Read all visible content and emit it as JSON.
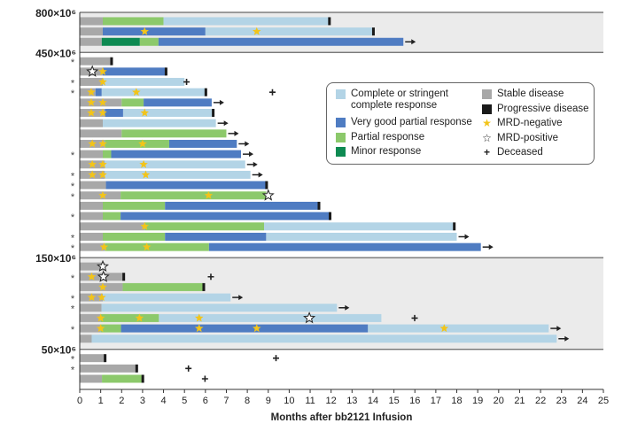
{
  "chart_data": {
    "type": "swimmer",
    "xlabel": "Months after bb2121 Infusion",
    "xlim": [
      0,
      25
    ],
    "xticks": [
      0,
      1,
      2,
      3,
      4,
      5,
      6,
      7,
      8,
      9,
      10,
      11,
      12,
      13,
      14,
      15,
      16,
      17,
      18,
      19,
      20,
      21,
      22,
      23,
      24,
      25
    ],
    "colors": {
      "CR": "#b3d4e6",
      "VGPR": "#4f7cc2",
      "PR": "#8cc96b",
      "MR": "#0e8a52",
      "SD": "#a8a8a8",
      "PD": "#1a1a1a",
      "mrd_neg": "#f2c41a",
      "group_bg": "#ebebeb"
    },
    "legend": {
      "CR": "Complete or stringent complete response",
      "VGPR": "Very good partial response",
      "PR": "Partial response",
      "MR": "Minor response",
      "SD": "Stable disease",
      "PD": "Progressive disease",
      "mrd_neg": "MRD-negative",
      "mrd_pos": "MRD-positive",
      "deceased": "Deceased"
    },
    "asterisk": "*",
    "groups": [
      {
        "label": "800×10⁶",
        "shaded": true,
        "rows": [
          {
            "ast": false,
            "seg": [
              [
                "SD",
                0,
                1.1
              ],
              [
                "PR",
                1.1,
                4.0
              ],
              [
                "CR",
                4.0,
                11.9
              ]
            ],
            "end": "PD",
            "stars": [],
            "dec": null
          },
          {
            "ast": false,
            "seg": [
              [
                "SD",
                0,
                1.1
              ],
              [
                "VGPR",
                1.1,
                6.0
              ],
              [
                "CR",
                6.0,
                14.0
              ]
            ],
            "end": "PD",
            "stars": [
              [
                3.1,
                "neg"
              ],
              [
                8.45,
                "neg"
              ]
            ],
            "dec": null
          },
          {
            "ast": false,
            "seg": [
              [
                "SD",
                0,
                1.05
              ],
              [
                "MR",
                1.05,
                2.87
              ],
              [
                "PR",
                2.87,
                3.76
              ],
              [
                "VGPR",
                3.76,
                15.45
              ]
            ],
            "end": "ongoing",
            "stars": [],
            "dec": null
          }
        ]
      },
      {
        "label": "450×10⁶",
        "shaded": false,
        "rows": [
          {
            "ast": true,
            "seg": [
              [
                "SD",
                0,
                1.5
              ]
            ],
            "end": "PD",
            "stars": [],
            "dec": null
          },
          {
            "ast": false,
            "seg": [
              [
                "SD",
                0,
                1.1
              ],
              [
                "VGPR",
                1.1,
                4.1
              ]
            ],
            "end": "PD",
            "stars": [
              [
                0.6,
                "pos"
              ],
              [
                1.1,
                "neg"
              ]
            ],
            "dec": null
          },
          {
            "ast": true,
            "seg": [
              [
                "SD",
                0,
                1.1
              ],
              [
                "CR",
                1.1,
                5.0
              ]
            ],
            "end": null,
            "stars": [
              [
                1.1,
                "neg"
              ]
            ],
            "dec": 5.1
          },
          {
            "ast": true,
            "seg": [
              [
                "SD",
                0,
                0.75
              ],
              [
                "VGPR",
                0.75,
                1.05
              ],
              [
                "CR",
                1.05,
                6.0
              ]
            ],
            "end": "PD",
            "stars": [
              [
                0.55,
                "neg"
              ],
              [
                2.7,
                "neg"
              ]
            ],
            "dec": 9.2
          },
          {
            "ast": false,
            "seg": [
              [
                "SD",
                0,
                2.0
              ],
              [
                "PR",
                2.0,
                3.05
              ],
              [
                "VGPR",
                3.05,
                6.3
              ]
            ],
            "end": "ongoing",
            "stars": [
              [
                0.55,
                "neg"
              ],
              [
                1.1,
                "neg"
              ]
            ],
            "dec": null
          },
          {
            "ast": false,
            "seg": [
              [
                "SD",
                0,
                1.2
              ],
              [
                "VGPR",
                1.2,
                2.07
              ],
              [
                "CR",
                2.07,
                6.35
              ]
            ],
            "end": "PD",
            "stars": [
              [
                0.55,
                "neg"
              ],
              [
                1.1,
                "neg"
              ],
              [
                3.1,
                "neg"
              ]
            ],
            "dec": null
          },
          {
            "ast": false,
            "seg": [
              [
                "SD",
                0,
                1.1
              ],
              [
                "CR",
                1.1,
                6.5
              ]
            ],
            "end": "ongoing",
            "stars": [],
            "dec": null
          },
          {
            "ast": false,
            "seg": [
              [
                "SD",
                0,
                2.0
              ],
              [
                "PR",
                2.0,
                7.0
              ]
            ],
            "end": "ongoing",
            "stars": [],
            "dec": null
          },
          {
            "ast": false,
            "seg": [
              [
                "SD",
                0,
                1.2
              ],
              [
                "PR",
                1.2,
                4.27
              ],
              [
                "VGPR",
                4.27,
                7.5
              ]
            ],
            "end": "ongoing",
            "stars": [
              [
                0.6,
                "neg"
              ],
              [
                1.1,
                "neg"
              ],
              [
                3.0,
                "neg"
              ]
            ],
            "dec": null
          },
          {
            "ast": true,
            "seg": [
              [
                "SD",
                0,
                1.1
              ],
              [
                "PR",
                1.1,
                1.5
              ],
              [
                "VGPR",
                1.5,
                7.7
              ]
            ],
            "end": "ongoing",
            "stars": [],
            "dec": null
          },
          {
            "ast": false,
            "seg": [
              [
                "SD",
                0,
                1.2
              ],
              [
                "CR",
                1.2,
                7.9
              ]
            ],
            "end": "ongoing",
            "stars": [
              [
                0.6,
                "neg"
              ],
              [
                1.1,
                "neg"
              ],
              [
                3.05,
                "neg"
              ]
            ],
            "dec": null
          },
          {
            "ast": true,
            "seg": [
              [
                "SD",
                0,
                1.2
              ],
              [
                "CR",
                1.2,
                8.15
              ]
            ],
            "end": "ongoing",
            "stars": [
              [
                0.6,
                "neg"
              ],
              [
                1.1,
                "neg"
              ],
              [
                3.15,
                "neg"
              ]
            ],
            "dec": null
          },
          {
            "ast": true,
            "seg": [
              [
                "SD",
                0,
                1.25
              ],
              [
                "VGPR",
                1.25,
                8.9
              ]
            ],
            "end": "PD",
            "stars": [],
            "dec": null
          },
          {
            "ast": true,
            "seg": [
              [
                "SD",
                0,
                1.95
              ],
              [
                "PR",
                1.95,
                8.9
              ]
            ],
            "end": null,
            "stars": [
              [
                1.1,
                "neg"
              ],
              [
                6.15,
                "neg"
              ],
              [
                9.0,
                "pos"
              ]
            ],
            "dec": null
          },
          {
            "ast": false,
            "seg": [
              [
                "SD",
                0,
                1.1
              ],
              [
                "PR",
                1.1,
                4.07
              ],
              [
                "VGPR",
                4.07,
                11.4
              ]
            ],
            "end": "PD",
            "stars": [],
            "dec": null
          },
          {
            "ast": true,
            "seg": [
              [
                "SD",
                0,
                1.1
              ],
              [
                "PR",
                1.1,
                1.95
              ],
              [
                "VGPR",
                1.95,
                11.93
              ]
            ],
            "end": "PD",
            "stars": [],
            "dec": null
          },
          {
            "ast": false,
            "seg": [
              [
                "SD",
                0,
                3.1
              ],
              [
                "PR",
                3.1,
                8.8
              ],
              [
                "CR",
                8.8,
                17.86
              ]
            ],
            "end": "PD",
            "stars": [
              [
                3.1,
                "neg"
              ]
            ],
            "dec": null
          },
          {
            "ast": true,
            "seg": [
              [
                "SD",
                0,
                1.1
              ],
              [
                "PR",
                1.1,
                4.07
              ],
              [
                "VGPR",
                4.07,
                8.9
              ],
              [
                "CR",
                8.9,
                18.0
              ]
            ],
            "end": "ongoing",
            "stars": [],
            "dec": null
          },
          {
            "ast": true,
            "seg": [
              [
                "SD",
                0,
                1.2
              ],
              [
                "PR",
                1.2,
                6.17
              ],
              [
                "VGPR",
                6.17,
                19.15
              ]
            ],
            "end": "ongoing",
            "stars": [
              [
                1.16,
                "neg"
              ],
              [
                3.2,
                "neg"
              ]
            ],
            "dec": null
          }
        ]
      },
      {
        "label": "150×10⁶",
        "shaded": true,
        "rows": [
          {
            "ast": false,
            "seg": [
              [
                "SD",
                0,
                1.2
              ]
            ],
            "end": null,
            "stars": [
              [
                1.1,
                "pos"
              ]
            ],
            "dec": null
          },
          {
            "ast": true,
            "seg": [
              [
                "SD",
                0,
                2.08
              ]
            ],
            "end": "PD",
            "stars": [
              [
                0.57,
                "neg"
              ],
              [
                1.13,
                "pos"
              ]
            ],
            "dec": 6.26
          },
          {
            "ast": false,
            "seg": [
              [
                "SD",
                0,
                2.05
              ],
              [
                "PR",
                2.05,
                5.9
              ]
            ],
            "end": "PD",
            "stars": [
              [
                1.1,
                "neg"
              ]
            ],
            "dec": null
          },
          {
            "ast": true,
            "seg": [
              [
                "SD",
                0,
                1.1
              ],
              [
                "CR",
                1.1,
                7.2
              ]
            ],
            "end": "ongoing",
            "stars": [
              [
                0.57,
                "neg"
              ],
              [
                1.05,
                "neg"
              ]
            ],
            "dec": null
          },
          {
            "ast": true,
            "seg": [
              [
                "SD",
                0,
                1.04
              ],
              [
                "CR",
                1.04,
                12.28
              ]
            ],
            "end": "ongoing",
            "stars": [],
            "dec": null
          },
          {
            "ast": false,
            "seg": [
              [
                "SD",
                0,
                1.0
              ],
              [
                "PR",
                1.0,
                3.78
              ],
              [
                "CR",
                3.78,
                14.4
              ]
            ],
            "end": null,
            "stars": [
              [
                1.0,
                "neg"
              ],
              [
                2.85,
                "neg"
              ],
              [
                5.7,
                "neg"
              ],
              [
                10.96,
                "pos"
              ]
            ],
            "dec": 15.99
          },
          {
            "ast": true,
            "seg": [
              [
                "SD",
                0,
                1.0
              ],
              [
                "PR",
                1.0,
                1.97
              ],
              [
                "VGPR",
                1.97,
                13.76
              ],
              [
                "CR",
                13.76,
                22.39
              ]
            ],
            "end": "ongoing",
            "stars": [
              [
                1.0,
                "neg"
              ],
              [
                5.7,
                "neg"
              ],
              [
                8.45,
                "neg"
              ],
              [
                17.4,
                "neg"
              ]
            ],
            "dec": null
          },
          {
            "ast": false,
            "seg": [
              [
                "SD",
                0,
                0.57
              ],
              [
                "CR",
                0.57,
                22.77
              ]
            ],
            "end": "ongoing",
            "stars": [],
            "dec": null
          }
        ]
      },
      {
        "label": "50×10⁶",
        "shaded": false,
        "rows": [
          {
            "ast": true,
            "seg": [
              [
                "SD",
                0,
                1.19
              ]
            ],
            "end": "PD",
            "stars": [],
            "dec": 9.37
          },
          {
            "ast": true,
            "seg": [
              [
                "SD",
                0,
                2.7
              ]
            ],
            "end": "PD",
            "stars": [],
            "dec": 5.19
          },
          {
            "ast": false,
            "seg": [
              [
                "SD",
                0,
                1.06
              ],
              [
                "PR",
                1.06,
                2.99
              ]
            ],
            "end": "PD",
            "stars": [],
            "dec": 5.98
          }
        ]
      }
    ]
  }
}
